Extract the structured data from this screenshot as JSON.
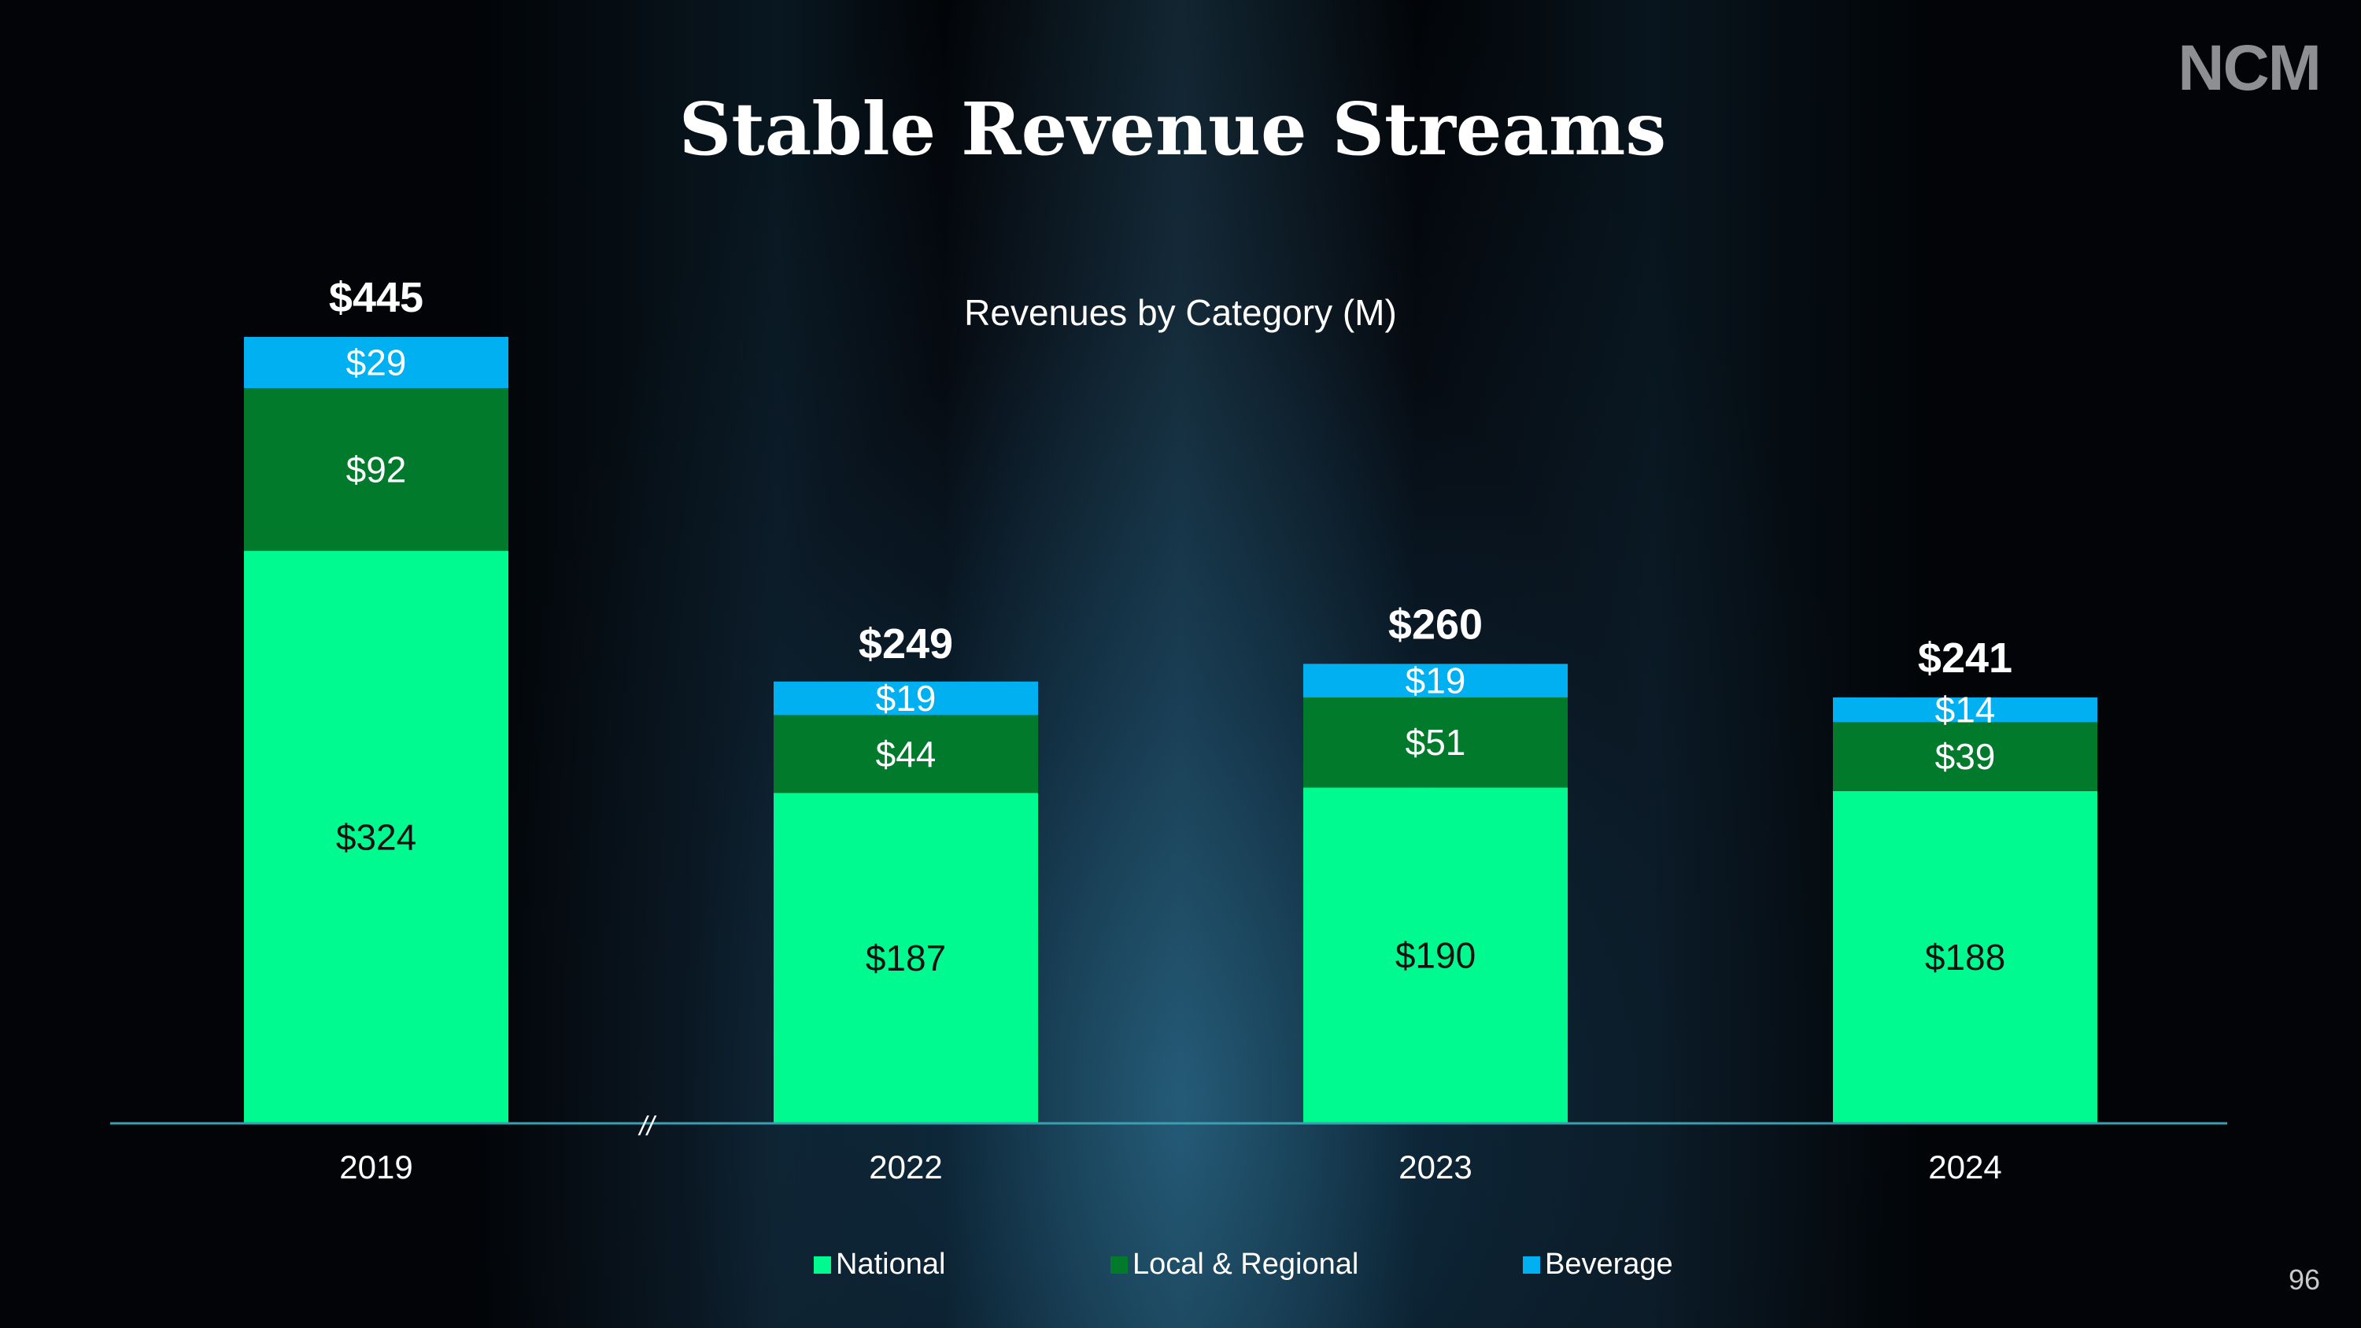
{
  "logo": "NCM",
  "title": "Stable Revenue Streams",
  "page_number": "96",
  "colors": {
    "national": "#00fa8f",
    "local_regional": "#017a2c",
    "beverage": "#00b0f0",
    "axis": "#3aa0b0"
  },
  "axis_break_marker": "//",
  "chart_data": {
    "type": "bar",
    "stacked": true,
    "title": "Revenues by Category (M)",
    "categories": [
      "2019",
      "2022",
      "2023",
      "2024"
    ],
    "series": [
      {
        "name": "National",
        "values": [
          324,
          187,
          190,
          188
        ],
        "labels": [
          "$324",
          "$187",
          "$190",
          "$188"
        ]
      },
      {
        "name": "Local & Regional",
        "values": [
          92,
          44,
          51,
          39
        ],
        "labels": [
          "$92",
          "$44",
          "$51",
          "$39"
        ]
      },
      {
        "name": "Beverage",
        "values": [
          29,
          19,
          19,
          14
        ],
        "labels": [
          "$29",
          "$19",
          "$19",
          "$14"
        ]
      }
    ],
    "totals": [
      445,
      249,
      260,
      241
    ],
    "total_labels": [
      "$445",
      "$249",
      "$260",
      "$241"
    ],
    "ylim": [
      0,
      445
    ],
    "grid": false,
    "legend_position": "bottom"
  }
}
